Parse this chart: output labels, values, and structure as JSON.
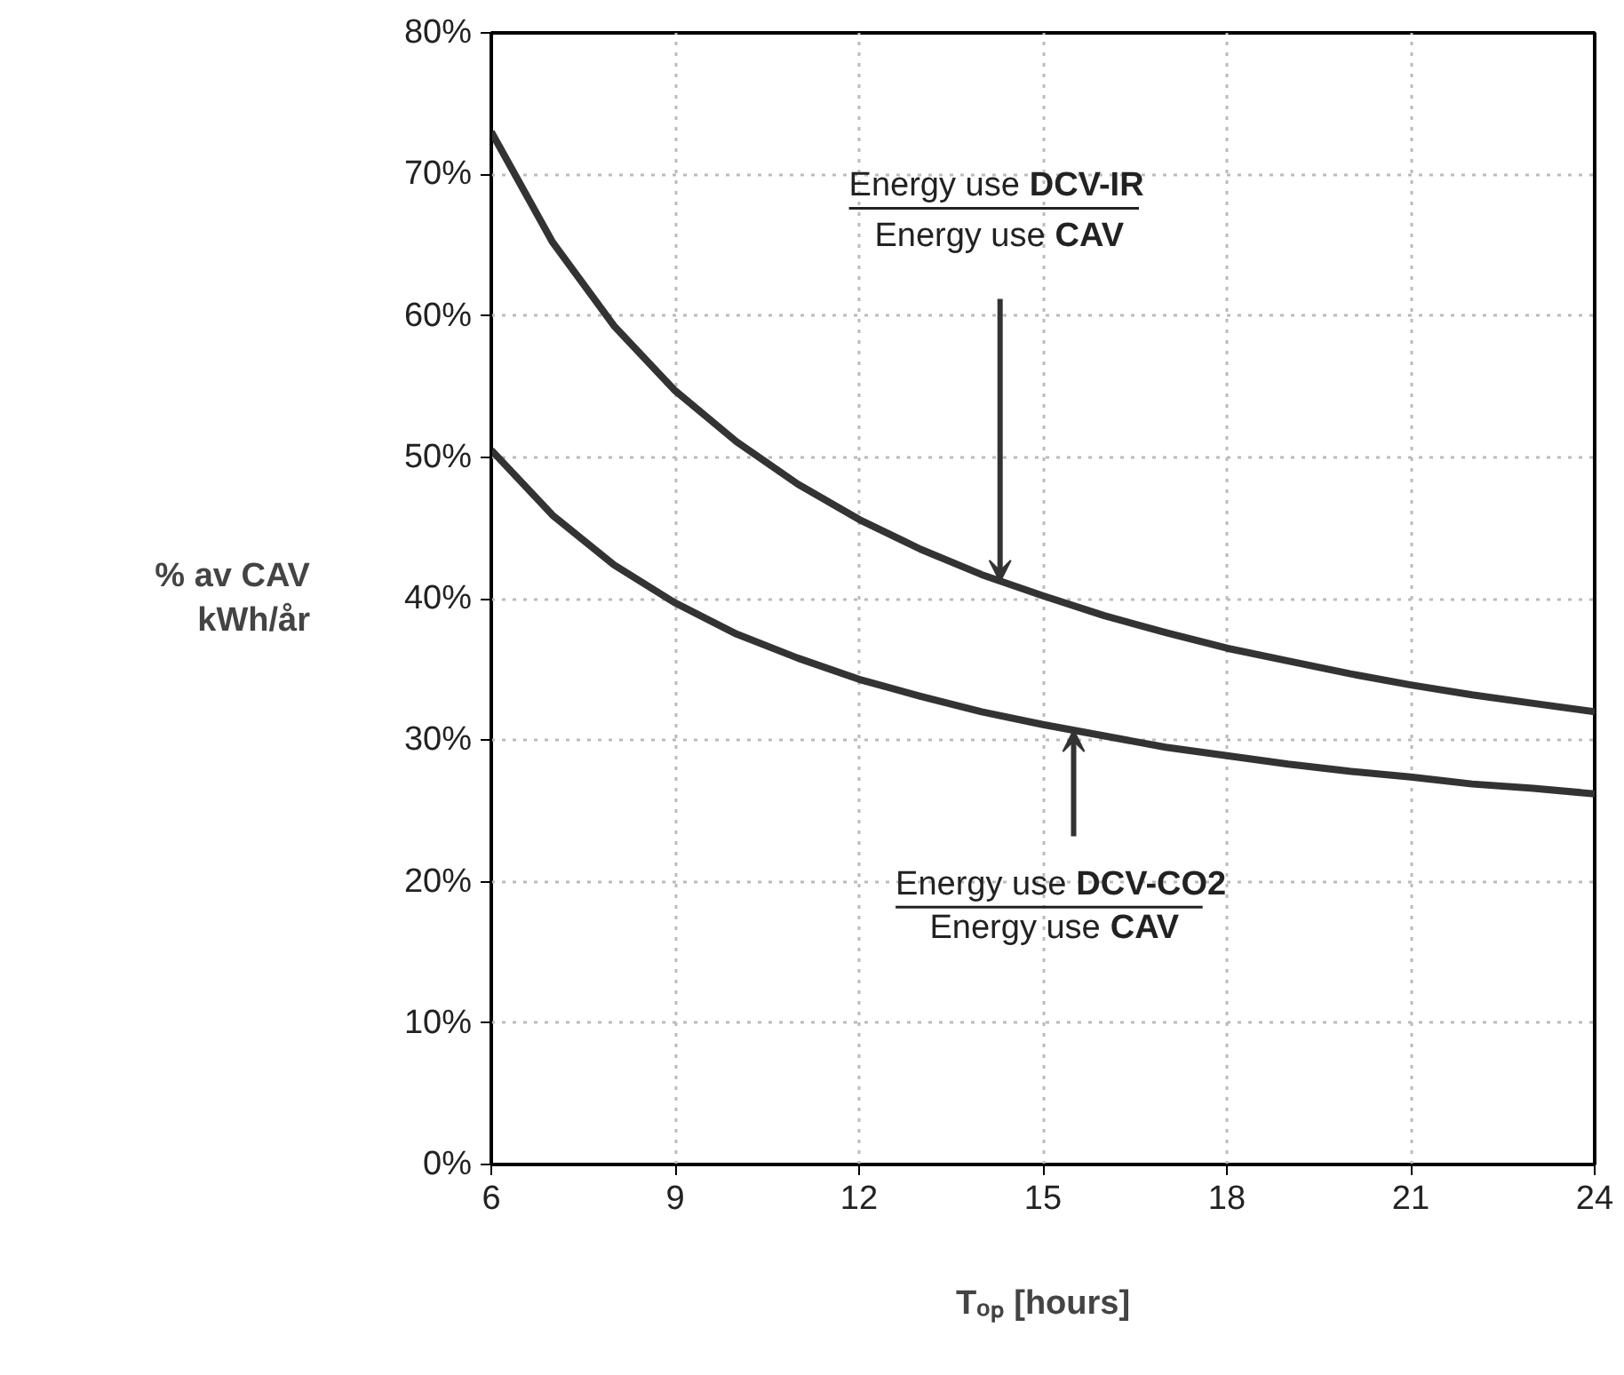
{
  "chart_data": {
    "type": "line",
    "xlabel": "Tₒₚ [hours]",
    "ylabel": "% av CAV\nkWh/år",
    "x": [
      6,
      7,
      8,
      9,
      10,
      11,
      12,
      13,
      14,
      15,
      16,
      17,
      18,
      19,
      20,
      21,
      22,
      23,
      24
    ],
    "series": [
      {
        "color": "#333333",
        "values": [
          73.0,
          65.2,
          59.3,
          54.7,
          51.1,
          48.1,
          45.6,
          43.5,
          41.7,
          40.2,
          38.8,
          37.6,
          36.5,
          35.6,
          34.7,
          33.9,
          33.2,
          32.6,
          32.0
        ]
      },
      {
        "color": "#333333",
        "values": [
          50.5,
          45.9,
          42.4,
          39.7,
          37.5,
          35.8,
          34.3,
          33.1,
          32.0,
          31.1,
          30.3,
          29.5,
          28.9,
          28.3,
          27.8,
          27.4,
          26.9,
          26.6,
          26.2
        ]
      }
    ],
    "annotations": [
      {
        "text": "Energy use DCV-IR\nEnergy use CAV",
        "x": 14.3,
        "y": 41.2
      },
      {
        "text": "Energy use DCV-CO2\nEnergy use CAV",
        "x": 15.5,
        "y": 30.7
      }
    ],
    "xlim": [
      6,
      24
    ],
    "xticks": [
      6,
      9,
      12,
      15,
      18,
      21,
      24
    ],
    "ylim": [
      0,
      80
    ],
    "yticks": [
      {
        "value": 0,
        "label": "0%"
      },
      {
        "value": 10,
        "label": "10%"
      },
      {
        "value": 20,
        "label": "20%"
      },
      {
        "value": 30,
        "label": "30%"
      },
      {
        "value": 40,
        "label": "40%"
      },
      {
        "value": 50,
        "label": "50%"
      },
      {
        "value": 60,
        "label": "60%"
      },
      {
        "value": 70,
        "label": "70%"
      },
      {
        "value": 80,
        "label": "80%"
      }
    ],
    "grid": true,
    "marker": "none",
    "line_style": "solid"
  }
}
